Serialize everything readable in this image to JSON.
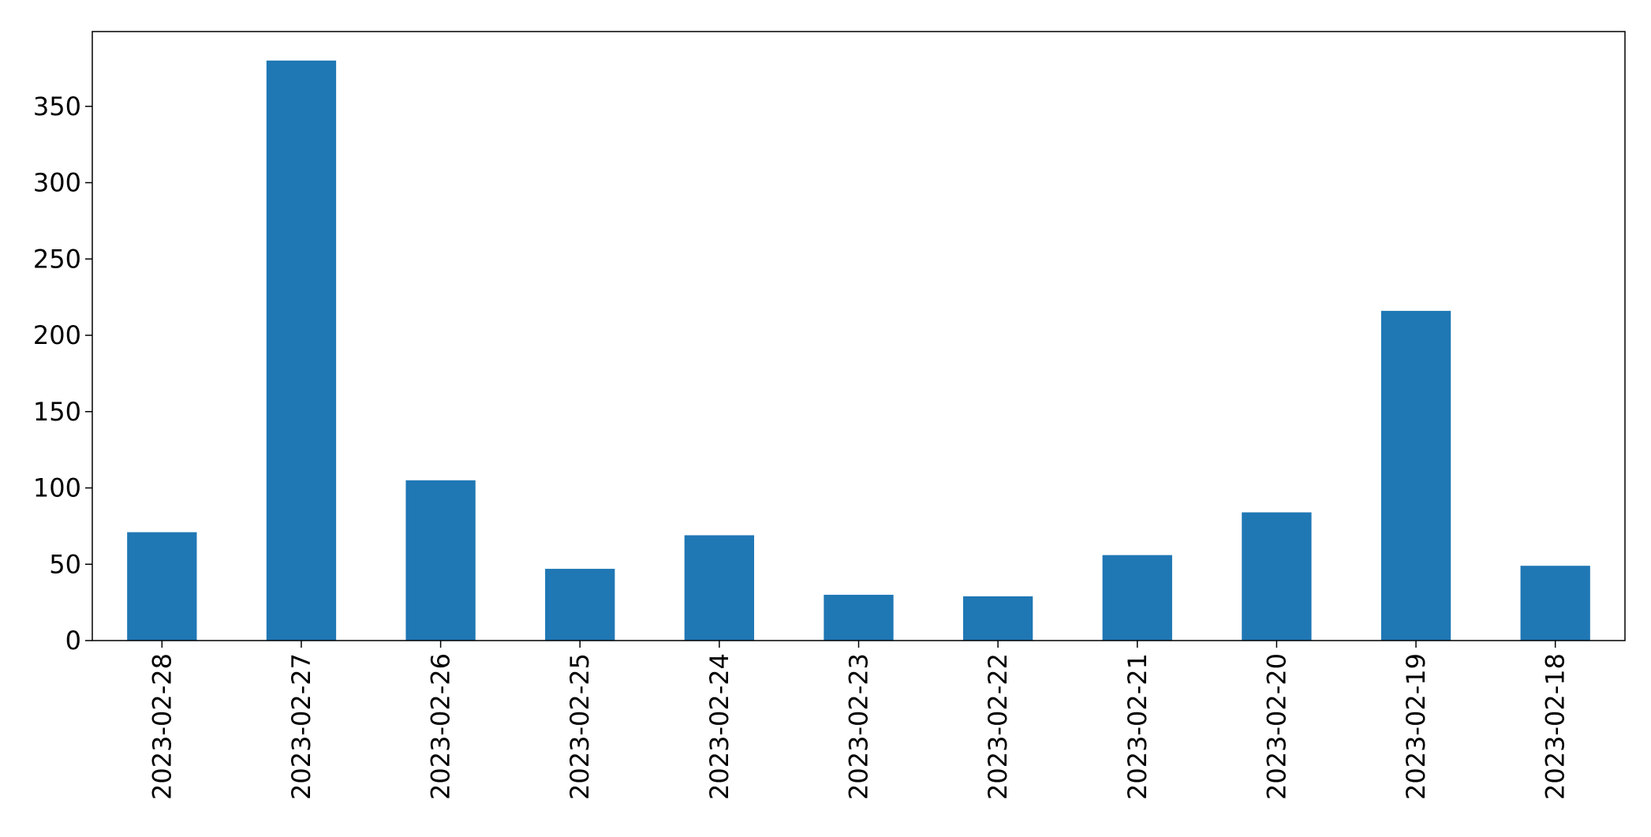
{
  "chart_data": {
    "type": "bar",
    "title": "",
    "xlabel": "",
    "ylabel": "",
    "categories": [
      "2023-02-28",
      "2023-02-27",
      "2023-02-26",
      "2023-02-25",
      "2023-02-24",
      "2023-02-23",
      "2023-02-22",
      "2023-02-21",
      "2023-02-20",
      "2023-02-19",
      "2023-02-18"
    ],
    "values": [
      71,
      380,
      105,
      47,
      69,
      30,
      29,
      56,
      84,
      216,
      49
    ],
    "ylim": [
      0,
      399
    ],
    "yticks": [
      "0",
      "50",
      "100",
      "150",
      "200",
      "250",
      "300",
      "350"
    ],
    "grid": false,
    "legend": "none",
    "bar_color": "#1f77b4"
  }
}
